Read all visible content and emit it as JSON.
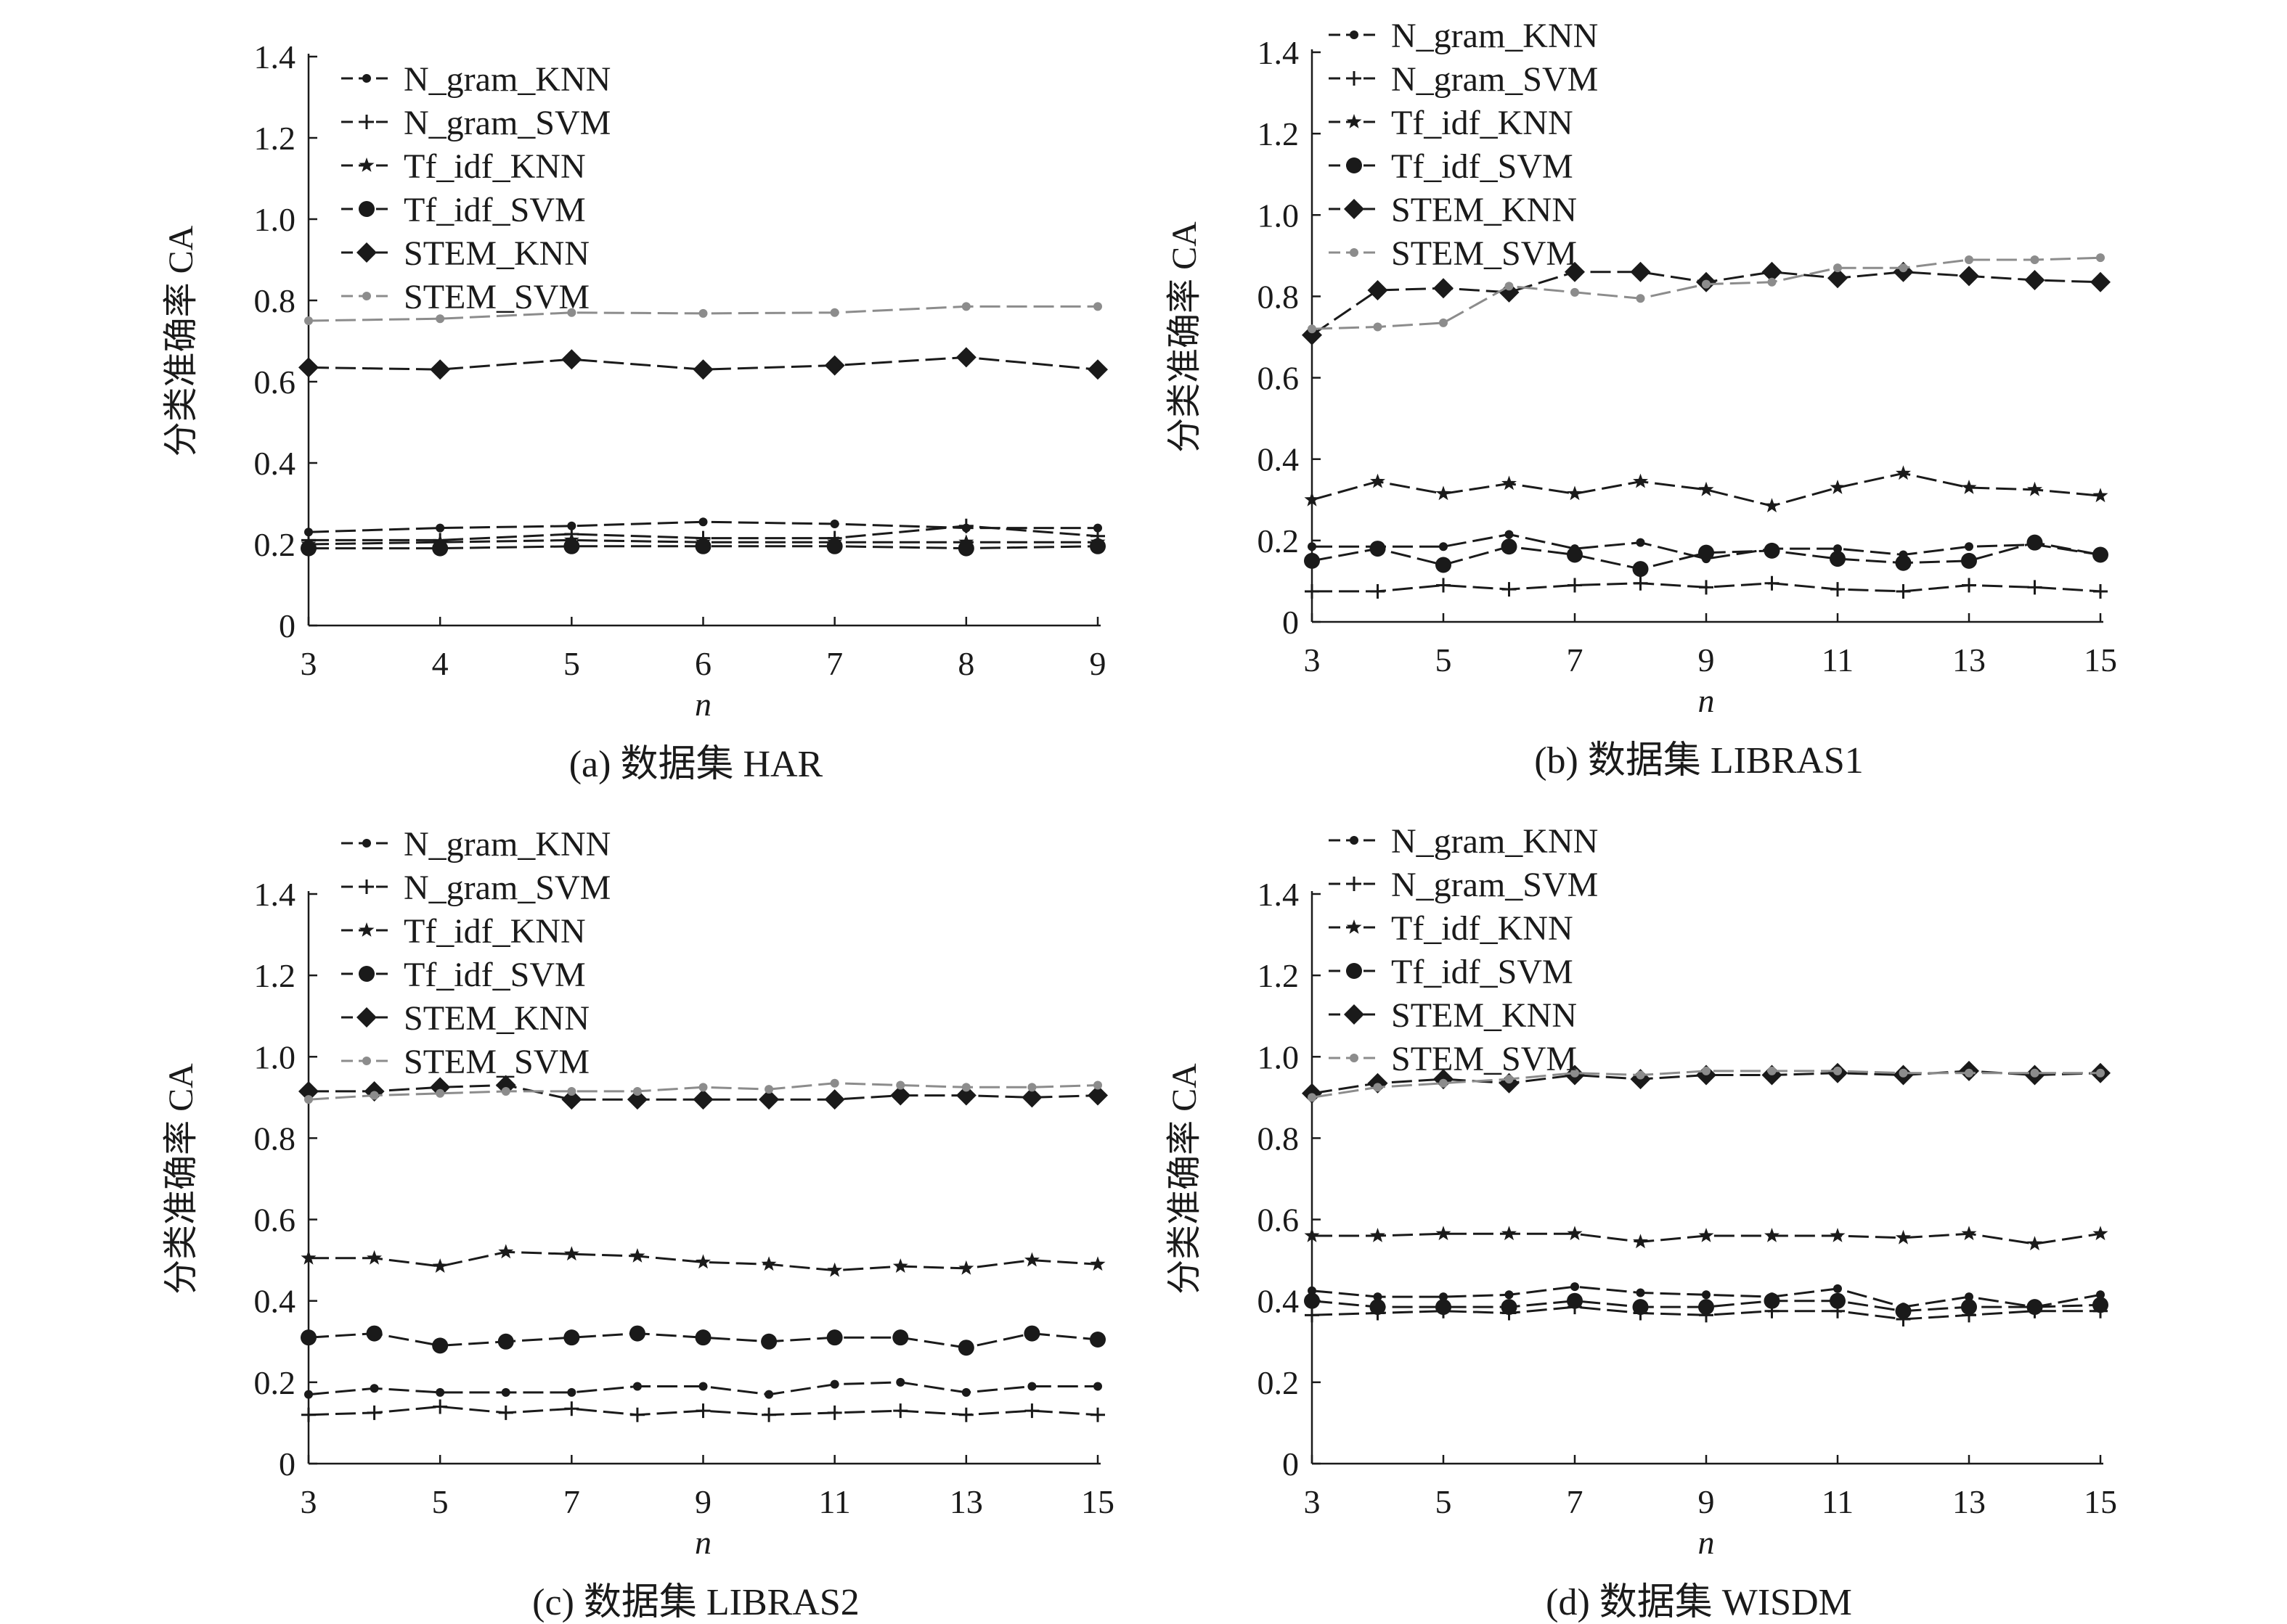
{
  "y_axis_label": "分类准确率 CA",
  "x_axis_label": "n",
  "y_tick_labels": [
    "0",
    "0.2",
    "0.4",
    "0.6",
    "0.8",
    "1.0",
    "1.2",
    "1.4"
  ],
  "colors": {
    "black": "#1a1a1a",
    "gray": "#8c8c8c"
  },
  "chart_data": [
    {
      "type": "line",
      "caption": "(a) 数据集 HAR",
      "xlabel": "n",
      "ylabel": "分类准确率 CA",
      "x": [
        3,
        4,
        5,
        6,
        7,
        8,
        9
      ],
      "x_ticks": [
        3,
        4,
        5,
        6,
        7,
        8,
        9
      ],
      "xlim": [
        3,
        9
      ],
      "ylim": [
        0,
        1.4
      ],
      "legend_position": "top-left",
      "series": [
        {
          "name": "N_gram_KNN",
          "marker": "dot",
          "color": "black",
          "values": [
            0.23,
            0.24,
            0.245,
            0.255,
            0.25,
            0.24,
            0.24
          ]
        },
        {
          "name": "N_gram_SVM",
          "marker": "plus",
          "color": "black",
          "values": [
            0.21,
            0.21,
            0.225,
            0.215,
            0.215,
            0.245,
            0.22
          ]
        },
        {
          "name": "Tf_idf_KNN",
          "marker": "star",
          "color": "black",
          "values": [
            0.2,
            0.205,
            0.21,
            0.205,
            0.205,
            0.205,
            0.205
          ]
        },
        {
          "name": "Tf_idf_SVM",
          "marker": "circle",
          "color": "black",
          "values": [
            0.19,
            0.19,
            0.195,
            0.195,
            0.195,
            0.19,
            0.195
          ]
        },
        {
          "name": "STEM_KNN",
          "marker": "diamond",
          "color": "black",
          "values": [
            0.635,
            0.63,
            0.655,
            0.63,
            0.64,
            0.66,
            0.63
          ]
        },
        {
          "name": "STEM_SVM",
          "marker": "dot",
          "color": "gray",
          "values": [
            0.75,
            0.755,
            0.77,
            0.768,
            0.77,
            0.785,
            0.785
          ]
        }
      ]
    },
    {
      "type": "line",
      "caption": "(b) 数据集 LIBRAS1",
      "xlabel": "n",
      "ylabel": "分类准确率 CA",
      "x": [
        3,
        4,
        5,
        6,
        7,
        8,
        9,
        10,
        11,
        12,
        13,
        14,
        15
      ],
      "x_ticks": [
        3,
        5,
        7,
        9,
        11,
        13,
        15
      ],
      "xlim": [
        3,
        15
      ],
      "ylim": [
        0,
        1.4
      ],
      "legend_position": "top-left",
      "series": [
        {
          "name": "N_gram_KNN",
          "marker": "dot",
          "color": "black",
          "values": [
            0.185,
            0.185,
            0.185,
            0.215,
            0.18,
            0.195,
            0.155,
            0.18,
            0.18,
            0.165,
            0.185,
            0.19,
            0.165
          ]
        },
        {
          "name": "N_gram_SVM",
          "marker": "plus",
          "color": "black",
          "values": [
            0.075,
            0.075,
            0.09,
            0.08,
            0.09,
            0.095,
            0.085,
            0.095,
            0.08,
            0.075,
            0.09,
            0.085,
            0.075
          ]
        },
        {
          "name": "Tf_idf_KNN",
          "marker": "star",
          "color": "black",
          "values": [
            0.3,
            0.345,
            0.315,
            0.34,
            0.315,
            0.345,
            0.325,
            0.285,
            0.33,
            0.365,
            0.33,
            0.325,
            0.31
          ]
        },
        {
          "name": "Tf_idf_SVM",
          "marker": "circle",
          "color": "black",
          "values": [
            0.15,
            0.18,
            0.14,
            0.185,
            0.165,
            0.13,
            0.17,
            0.175,
            0.155,
            0.145,
            0.15,
            0.195,
            0.165
          ]
        },
        {
          "name": "STEM_KNN",
          "marker": "diamond",
          "color": "black",
          "values": [
            0.705,
            0.815,
            0.82,
            0.81,
            0.86,
            0.86,
            0.835,
            0.86,
            0.845,
            0.86,
            0.85,
            0.84,
            0.835
          ]
        },
        {
          "name": "STEM_SVM",
          "marker": "dot",
          "color": "gray",
          "values": [
            0.72,
            0.725,
            0.735,
            0.825,
            0.81,
            0.795,
            0.83,
            0.835,
            0.87,
            0.87,
            0.89,
            0.89,
            0.895
          ]
        }
      ]
    },
    {
      "type": "line",
      "caption": "(c) 数据集 LIBRAS2",
      "xlabel": "n",
      "ylabel": "分类准确率 CA",
      "x": [
        3,
        4,
        5,
        6,
        7,
        8,
        9,
        10,
        11,
        12,
        13,
        14,
        15
      ],
      "x_ticks": [
        3,
        5,
        7,
        9,
        11,
        13,
        15
      ],
      "xlim": [
        3,
        15
      ],
      "ylim": [
        0,
        1.4
      ],
      "legend_position": "top-left",
      "series": [
        {
          "name": "N_gram_KNN",
          "marker": "dot",
          "color": "black",
          "values": [
            0.17,
            0.185,
            0.175,
            0.175,
            0.175,
            0.19,
            0.19,
            0.17,
            0.195,
            0.2,
            0.175,
            0.19,
            0.19
          ]
        },
        {
          "name": "N_gram_SVM",
          "marker": "plus",
          "color": "black",
          "values": [
            0.12,
            0.125,
            0.14,
            0.125,
            0.135,
            0.12,
            0.13,
            0.12,
            0.125,
            0.13,
            0.12,
            0.13,
            0.12
          ]
        },
        {
          "name": "Tf_idf_KNN",
          "marker": "star",
          "color": "black",
          "values": [
            0.505,
            0.505,
            0.485,
            0.52,
            0.515,
            0.51,
            0.495,
            0.49,
            0.475,
            0.485,
            0.48,
            0.5,
            0.49
          ]
        },
        {
          "name": "Tf_idf_SVM",
          "marker": "circle",
          "color": "black",
          "values": [
            0.31,
            0.32,
            0.29,
            0.3,
            0.31,
            0.32,
            0.31,
            0.3,
            0.31,
            0.31,
            0.285,
            0.32,
            0.305
          ]
        },
        {
          "name": "STEM_KNN",
          "marker": "diamond",
          "color": "black",
          "values": [
            0.915,
            0.915,
            0.925,
            0.93,
            0.895,
            0.895,
            0.895,
            0.895,
            0.895,
            0.905,
            0.905,
            0.9,
            0.905
          ]
        },
        {
          "name": "STEM_SVM",
          "marker": "dot",
          "color": "gray",
          "values": [
            0.895,
            0.905,
            0.91,
            0.915,
            0.915,
            0.915,
            0.925,
            0.92,
            0.935,
            0.93,
            0.925,
            0.925,
            0.93
          ]
        }
      ]
    },
    {
      "type": "line",
      "caption": "(d) 数据集 WISDM",
      "xlabel": "n",
      "ylabel": "分类准确率 CA",
      "x": [
        3,
        4,
        5,
        6,
        7,
        8,
        9,
        10,
        11,
        12,
        13,
        14,
        15
      ],
      "x_ticks": [
        3,
        5,
        7,
        9,
        11,
        13,
        15
      ],
      "xlim": [
        3,
        15
      ],
      "ylim": [
        0,
        1.4
      ],
      "legend_position": "top-left",
      "series": [
        {
          "name": "N_gram_KNN",
          "marker": "dot",
          "color": "black",
          "values": [
            0.425,
            0.41,
            0.41,
            0.415,
            0.435,
            0.42,
            0.415,
            0.41,
            0.43,
            0.385,
            0.41,
            0.385,
            0.415
          ]
        },
        {
          "name": "N_gram_SVM",
          "marker": "plus",
          "color": "black",
          "values": [
            0.365,
            0.37,
            0.375,
            0.37,
            0.385,
            0.37,
            0.365,
            0.375,
            0.375,
            0.355,
            0.365,
            0.375,
            0.375
          ]
        },
        {
          "name": "Tf_idf_KNN",
          "marker": "star",
          "color": "black",
          "values": [
            0.56,
            0.56,
            0.565,
            0.565,
            0.565,
            0.545,
            0.56,
            0.56,
            0.56,
            0.555,
            0.565,
            0.54,
            0.565
          ]
        },
        {
          "name": "Tf_idf_SVM",
          "marker": "circle",
          "color": "black",
          "values": [
            0.4,
            0.385,
            0.385,
            0.385,
            0.4,
            0.385,
            0.385,
            0.4,
            0.4,
            0.375,
            0.385,
            0.385,
            0.39
          ]
        },
        {
          "name": "STEM_KNN",
          "marker": "diamond",
          "color": "black",
          "values": [
            0.91,
            0.935,
            0.945,
            0.935,
            0.955,
            0.945,
            0.955,
            0.955,
            0.96,
            0.955,
            0.965,
            0.955,
            0.96
          ]
        },
        {
          "name": "STEM_SVM",
          "marker": "dot",
          "color": "gray",
          "values": [
            0.9,
            0.925,
            0.935,
            0.945,
            0.96,
            0.955,
            0.965,
            0.965,
            0.965,
            0.96,
            0.96,
            0.96,
            0.96
          ]
        }
      ]
    }
  ]
}
